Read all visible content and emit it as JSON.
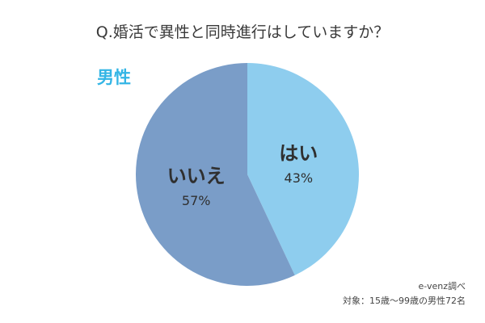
{
  "chart_data": {
    "type": "pie",
    "title": "Q.婚活で異性と同時進行はしていますか？",
    "subtitle": "男性",
    "slices": [
      {
        "label": "はい",
        "value": 43,
        "value_label": "43%",
        "color": "#8ecdee"
      },
      {
        "label": "いいえ",
        "value": 57,
        "value_label": "57%",
        "color": "#7a9dc8"
      }
    ],
    "start_angle": "12 o'clock",
    "direction": "clockwise",
    "legend": "none"
  },
  "footer": {
    "source": "e-venz調べ",
    "note": "対象：15歳〜99歳の男性72名"
  }
}
